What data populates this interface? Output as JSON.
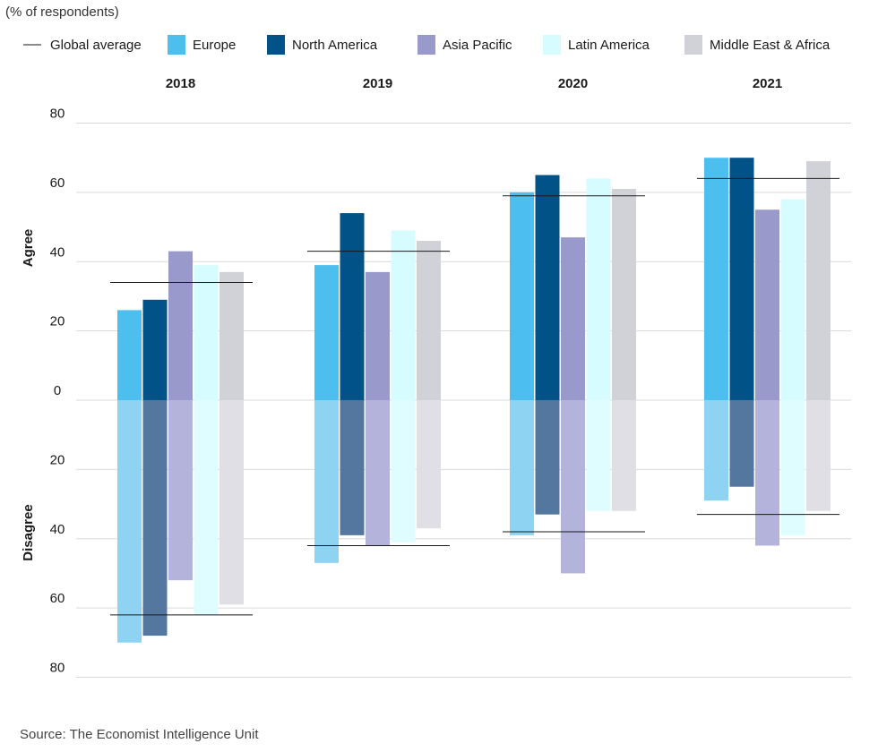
{
  "chart_data": {
    "type": "bar",
    "subtitle": "(% of respondents)",
    "source": "Source: The Economist Intelligence Unit",
    "ylabel_agree": "Agree",
    "ylabel_disagree": "Disagree",
    "global_average_label": "Global average",
    "categories": [
      "2018",
      "2019",
      "2020",
      "2021"
    ],
    "yticks": [
      "80",
      "60",
      "40",
      "20",
      "0",
      "20",
      "40",
      "60",
      "80"
    ],
    "ylim": [
      -80,
      80
    ],
    "grid": true,
    "legend_position": "top",
    "series": [
      {
        "name": "Europe",
        "color": "#4dbfee",
        "disagree_color": "#8fd3f3",
        "agree": [
          26,
          39,
          60,
          70
        ],
        "disagree": [
          70,
          47,
          39,
          29
        ]
      },
      {
        "name": "North America",
        "color": "#005287",
        "disagree_color": "#54779f",
        "agree": [
          29,
          54,
          65,
          70
        ],
        "disagree": [
          68,
          39,
          33,
          25
        ]
      },
      {
        "name": "Asia Pacific",
        "color": "#9a99cc",
        "disagree_color": "#b3b3dc",
        "agree": [
          43,
          37,
          47,
          55
        ],
        "disagree": [
          52,
          42,
          50,
          42
        ]
      },
      {
        "name": "Latin America",
        "color": "#d7fcff",
        "disagree_color": "#dffdff",
        "agree": [
          39,
          49,
          64,
          58
        ],
        "disagree": [
          62,
          41,
          32,
          39
        ]
      },
      {
        "name": "Middle East & Africa",
        "color": "#d1d1d8",
        "disagree_color": "#dfdfe5",
        "agree": [
          37,
          46,
          61,
          69
        ],
        "disagree": [
          59,
          37,
          32,
          32
        ]
      }
    ],
    "global_average": {
      "agree": [
        34,
        43,
        59,
        64
      ],
      "disagree": [
        62,
        42,
        38,
        33
      ]
    }
  }
}
